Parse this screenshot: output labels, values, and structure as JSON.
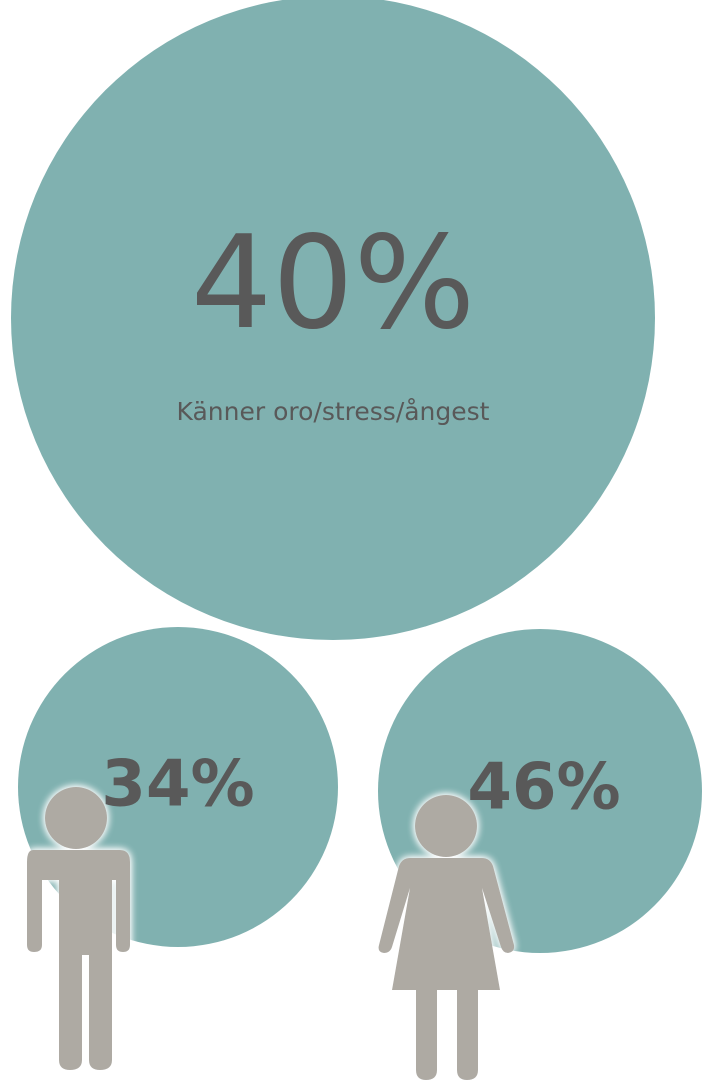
{
  "main": {
    "value": "40%",
    "label": "Känner oro/stress/ångest"
  },
  "men": {
    "value": "34%"
  },
  "women": {
    "value": "46%"
  }
}
